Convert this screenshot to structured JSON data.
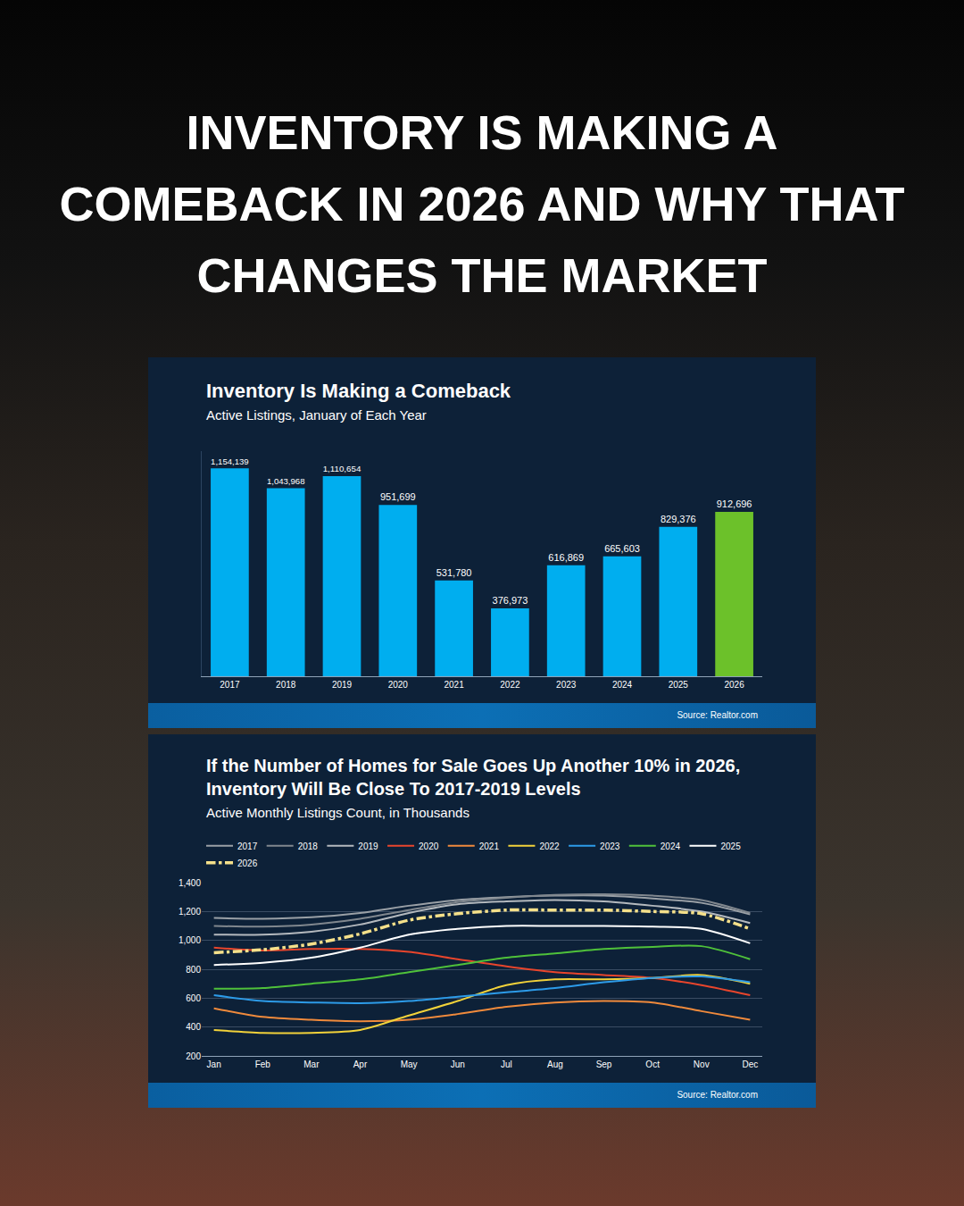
{
  "header": {
    "title": "INVENTORY IS MAKING A COMEBACK IN 2026 AND WHY THAT CHANGES THE MARKET"
  },
  "chart_data": [
    {
      "type": "bar",
      "title": "Inventory Is Making a Comeback",
      "subtitle": "Active Listings, January of Each Year",
      "annotation": "Source: Realtor.com",
      "categories": [
        "2017",
        "2018",
        "2019",
        "2020",
        "2021",
        "2022",
        "2023",
        "2024",
        "2025",
        "2026"
      ],
      "values": [
        1154139,
        1043968,
        1110654,
        951699,
        531780,
        376973,
        616869,
        665603,
        829376,
        912696
      ],
      "value_labels": [
        "1,154,139",
        "1,043,968",
        "1,110,654",
        "951,699",
        "531,780",
        "376,973",
        "616,869",
        "665,603",
        "829,376",
        "912,696"
      ],
      "colors": [
        "#00aeef",
        "#00aeef",
        "#00aeef",
        "#00aeef",
        "#00aeef",
        "#00aeef",
        "#00aeef",
        "#00aeef",
        "#00aeef",
        "#6cc12a"
      ],
      "ylim": [
        0,
        1250000
      ],
      "data_labels": true,
      "tick_labels": "x",
      "grid": false
    },
    {
      "type": "line",
      "title": "If the Number of Homes for Sale Goes Up Another 10% in 2026, Inventory Will Be Close To 2017-2019 Levels",
      "subtitle": "Active Monthly Listings Count, in Thousands",
      "annotation": "Source: Realtor.com",
      "categories": [
        "Jan",
        "Feb",
        "Mar",
        "Apr",
        "May",
        "Jun",
        "Jul",
        "Aug",
        "Sep",
        "Oct",
        "Nov",
        "Dec"
      ],
      "series": [
        {
          "name": "2017",
          "color": "#9aa0a6",
          "line_style": "solid",
          "values": [
            1155,
            1150,
            1160,
            1190,
            1240,
            1280,
            1300,
            1310,
            1310,
            1290,
            1260,
            1180
          ]
        },
        {
          "name": "2018",
          "color": "#80878e",
          "line_style": "solid",
          "values": [
            1100,
            1095,
            1110,
            1150,
            1210,
            1265,
            1295,
            1315,
            1320,
            1310,
            1280,
            1190
          ]
        },
        {
          "name": "2019",
          "color": "#b4b9be",
          "line_style": "solid",
          "values": [
            1040,
            1040,
            1060,
            1110,
            1190,
            1250,
            1270,
            1280,
            1270,
            1240,
            1200,
            1120
          ]
        },
        {
          "name": "2020",
          "color": "#e8452c",
          "line_style": "solid",
          "values": [
            950,
            930,
            940,
            940,
            920,
            870,
            820,
            780,
            760,
            740,
            690,
            620
          ]
        },
        {
          "name": "2021",
          "color": "#f08a3c",
          "line_style": "solid",
          "values": [
            530,
            470,
            450,
            440,
            450,
            490,
            540,
            570,
            580,
            570,
            510,
            450
          ]
        },
        {
          "name": "2022",
          "color": "#f2d23a",
          "line_style": "solid",
          "values": [
            380,
            360,
            360,
            380,
            480,
            580,
            690,
            730,
            730,
            740,
            760,
            700
          ]
        },
        {
          "name": "2023",
          "color": "#2d9be8",
          "line_style": "solid",
          "values": [
            620,
            580,
            570,
            565,
            580,
            610,
            640,
            670,
            710,
            740,
            750,
            710
          ]
        },
        {
          "name": "2024",
          "color": "#4fc13a",
          "line_style": "solid",
          "values": [
            665,
            670,
            700,
            730,
            780,
            830,
            880,
            910,
            940,
            955,
            960,
            870
          ]
        },
        {
          "name": "2025",
          "color": "#ffffff",
          "line_style": "solid",
          "values": [
            830,
            845,
            880,
            950,
            1040,
            1080,
            1100,
            1100,
            1100,
            1095,
            1080,
            980
          ]
        },
        {
          "name": "2026",
          "color": "#f5e08a",
          "line_style": "dashdot",
          "values": [
            915,
            935,
            975,
            1045,
            1140,
            1185,
            1210,
            1210,
            1210,
            1200,
            1185,
            1080
          ]
        }
      ],
      "ylim": [
        200,
        1400
      ],
      "yticks": [
        200,
        400,
        600,
        800,
        {
          "value": 1000,
          "label": "1,000"
        },
        {
          "value": 1200,
          "label": "1,200"
        },
        {
          "value": 1400,
          "label": "1,400"
        }
      ],
      "grid": true,
      "legend": "top"
    }
  ]
}
